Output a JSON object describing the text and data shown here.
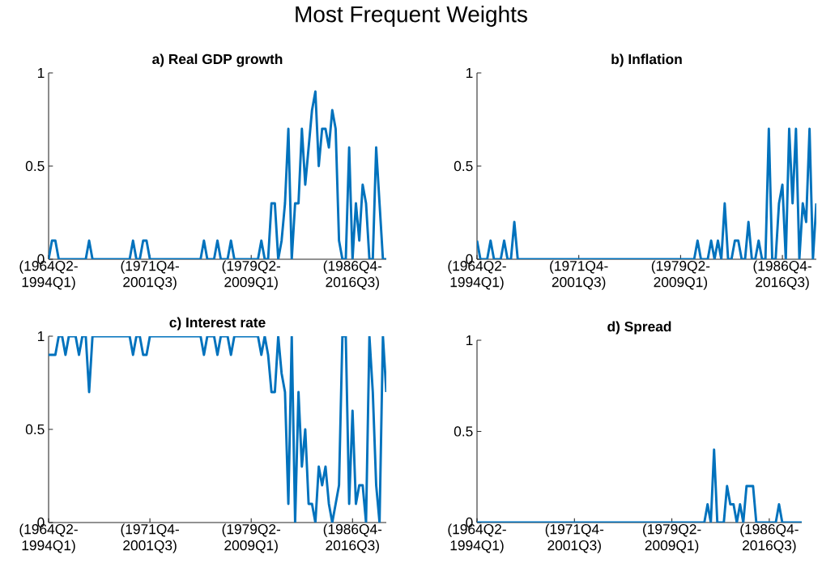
{
  "chart_data": [
    {
      "type": "other",
      "title": "Most Frequent Weights"
    },
    {
      "type": "line",
      "title": "a) Real GDP growth",
      "color": "#0072bd",
      "categories": [
        "(1964Q2- 1994Q1)",
        null,
        null,
        null,
        null,
        null,
        null,
        null,
        null,
        null,
        null,
        null,
        null,
        null,
        null,
        null,
        null,
        null,
        null,
        null,
        null,
        null,
        null,
        null,
        null,
        null,
        null,
        null,
        null,
        null,
        "(1971Q4- 2001Q3)",
        null,
        null,
        null,
        null,
        null,
        null,
        null,
        null,
        null,
        null,
        null,
        null,
        null,
        null,
        null,
        null,
        null,
        null,
        null,
        null,
        null,
        null,
        null,
        null,
        null,
        null,
        null,
        null,
        null,
        "(1979Q2- 2009Q1)",
        null,
        null,
        null,
        null,
        null,
        null,
        null,
        null,
        null,
        null,
        null,
        null,
        null,
        null,
        null,
        null,
        null,
        null,
        null,
        null,
        null,
        null,
        null,
        null,
        null,
        null,
        null,
        null,
        null,
        "(1986Q4- 2016Q3)",
        null,
        null,
        null,
        null,
        null,
        null,
        null,
        null,
        null,
        null
      ],
      "values": [
        0,
        0.1,
        0.1,
        0,
        0,
        0,
        0,
        0,
        0,
        0,
        0,
        0,
        0.1,
        0,
        0,
        0,
        0,
        0,
        0,
        0,
        0,
        0,
        0,
        0,
        0,
        0.1,
        0,
        0,
        0.1,
        0.1,
        0,
        0,
        0,
        0,
        0,
        0,
        0,
        0,
        0,
        0,
        0,
        0,
        0,
        0,
        0,
        0,
        0.1,
        0,
        0,
        0,
        0.1,
        0,
        0,
        0,
        0.1,
        0,
        0,
        0,
        0,
        0,
        0,
        0,
        0,
        0.1,
        0,
        0,
        0.3,
        0.3,
        0,
        0.1,
        0.3,
        0.7,
        0,
        0.3,
        0.3,
        0.7,
        0.4,
        0.6,
        0.8,
        0.9,
        0.5,
        0.7,
        0.7,
        0.6,
        0.8,
        0.7,
        0.1,
        0,
        0,
        0.6,
        0,
        0.3,
        0.1,
        0.4,
        0.3,
        0,
        0,
        0.6,
        0.3,
        0,
        0
      ],
      "ylim": [
        0,
        1
      ],
      "yticks": [
        0,
        0.5,
        1
      ]
    },
    {
      "type": "line",
      "title": "b) Inflation",
      "color": "#0072bd",
      "categories": [
        "(1964Q2- 1994Q1)",
        null,
        null,
        null,
        null,
        null,
        null,
        null,
        null,
        null,
        null,
        null,
        null,
        null,
        null,
        null,
        null,
        null,
        null,
        null,
        null,
        null,
        null,
        null,
        null,
        null,
        null,
        null,
        null,
        null,
        "(1971Q4- 2001Q3)",
        null,
        null,
        null,
        null,
        null,
        null,
        null,
        null,
        null,
        null,
        null,
        null,
        null,
        null,
        null,
        null,
        null,
        null,
        null,
        null,
        null,
        null,
        null,
        null,
        null,
        null,
        null,
        null,
        null,
        "(1979Q2- 2009Q1)",
        null,
        null,
        null,
        null,
        null,
        null,
        null,
        null,
        null,
        null,
        null,
        null,
        null,
        null,
        null,
        null,
        null,
        null,
        null,
        null,
        null,
        null,
        null,
        null,
        null,
        null,
        null,
        null,
        null,
        "(1986Q4- 2016Q3)",
        null,
        null,
        null,
        null,
        null,
        null,
        null,
        null,
        null,
        null
      ],
      "values": [
        0.1,
        0,
        0,
        0,
        0.1,
        0,
        0,
        0,
        0.1,
        0,
        0,
        0.2,
        0,
        0,
        0,
        0,
        0,
        0,
        0,
        0,
        0,
        0,
        0,
        0,
        0,
        0,
        0,
        0,
        0,
        0,
        0,
        0,
        0,
        0,
        0,
        0,
        0,
        0,
        0,
        0,
        0,
        0,
        0,
        0,
        0,
        0,
        0,
        0,
        0,
        0,
        0,
        0,
        0,
        0,
        0,
        0,
        0,
        0,
        0,
        0,
        0,
        0,
        0,
        0,
        0,
        0.1,
        0,
        0,
        0,
        0.1,
        0,
        0.1,
        0,
        0.3,
        0,
        0,
        0.1,
        0.1,
        0,
        0,
        0.2,
        0,
        0,
        0.1,
        0,
        0,
        0.7,
        0,
        0,
        0.3,
        0.4,
        0,
        0.7,
        0.3,
        0.7,
        0,
        0.3,
        0.2,
        0.7,
        0,
        0.3
      ],
      "ylim": [
        0,
        1
      ],
      "yticks": [
        0,
        0.5,
        1
      ]
    },
    {
      "type": "line",
      "title": "c) Interest rate",
      "color": "#0072bd",
      "categories": [
        "(1964Q2- 1994Q1)",
        null,
        null,
        null,
        null,
        null,
        null,
        null,
        null,
        null,
        null,
        null,
        null,
        null,
        null,
        null,
        null,
        null,
        null,
        null,
        null,
        null,
        null,
        null,
        null,
        null,
        null,
        null,
        null,
        null,
        "(1971Q4- 2001Q3)",
        null,
        null,
        null,
        null,
        null,
        null,
        null,
        null,
        null,
        null,
        null,
        null,
        null,
        null,
        null,
        null,
        null,
        null,
        null,
        null,
        null,
        null,
        null,
        null,
        null,
        null,
        null,
        null,
        null,
        "(1979Q2- 2009Q1)",
        null,
        null,
        null,
        null,
        null,
        null,
        null,
        null,
        null,
        null,
        null,
        null,
        null,
        null,
        null,
        null,
        null,
        null,
        null,
        null,
        null,
        null,
        null,
        null,
        null,
        null,
        null,
        null,
        null,
        "(1986Q4- 2016Q3)",
        null,
        null,
        null,
        null,
        null,
        null,
        null,
        null,
        null,
        null
      ],
      "values": [
        0.9,
        0.9,
        0.9,
        1,
        1,
        0.9,
        1,
        1,
        1,
        0.9,
        1,
        1,
        0.7,
        1,
        1,
        1,
        1,
        1,
        1,
        1,
        1,
        1,
        1,
        1,
        1,
        0.9,
        1,
        1,
        0.9,
        0.9,
        1,
        1,
        1,
        1,
        1,
        1,
        1,
        1,
        1,
        1,
        1,
        1,
        1,
        1,
        1,
        1,
        0.9,
        1,
        1,
        1,
        0.9,
        1,
        1,
        1,
        0.9,
        1,
        1,
        1,
        1,
        1,
        1,
        1,
        1,
        0.9,
        1,
        0.9,
        0.7,
        0.7,
        1,
        0.8,
        0.7,
        0.1,
        1,
        0,
        0.7,
        0.3,
        0.5,
        0.1,
        0.1,
        0,
        0.3,
        0.2,
        0.3,
        0.1,
        0,
        0.1,
        0.2,
        1,
        1,
        0.1,
        0.6,
        0.1,
        0.2,
        0.2,
        0,
        1,
        0.7,
        0.2,
        0,
        1,
        0.7
      ],
      "ylim": [
        0,
        1
      ],
      "yticks": [
        0,
        0.5,
        1
      ]
    },
    {
      "type": "line",
      "title": "d) Spread",
      "color": "#0072bd",
      "categories": [
        "(1964Q2- 1994Q1)",
        null,
        null,
        null,
        null,
        null,
        null,
        null,
        null,
        null,
        null,
        null,
        null,
        null,
        null,
        null,
        null,
        null,
        null,
        null,
        null,
        null,
        null,
        null,
        null,
        null,
        null,
        null,
        null,
        null,
        "(1971Q4- 2001Q3)",
        null,
        null,
        null,
        null,
        null,
        null,
        null,
        null,
        null,
        null,
        null,
        null,
        null,
        null,
        null,
        null,
        null,
        null,
        null,
        null,
        null,
        null,
        null,
        null,
        null,
        null,
        null,
        null,
        null,
        "(1979Q2- 2009Q1)",
        null,
        null,
        null,
        null,
        null,
        null,
        null,
        null,
        null,
        null,
        null,
        null,
        null,
        null,
        null,
        null,
        null,
        null,
        null,
        null,
        null,
        null,
        null,
        null,
        null,
        null,
        null,
        null,
        null,
        "(1986Q4- 2016Q3)",
        null,
        null,
        null,
        null,
        null,
        null,
        null,
        null,
        null,
        null
      ],
      "values": [
        0,
        0,
        0,
        0,
        0,
        0,
        0,
        0,
        0,
        0,
        0,
        0,
        0,
        0,
        0,
        0,
        0,
        0,
        0,
        0,
        0,
        0,
        0,
        0,
        0,
        0,
        0,
        0,
        0,
        0,
        0,
        0,
        0,
        0,
        0,
        0,
        0,
        0,
        0,
        0,
        0,
        0,
        0,
        0,
        0,
        0,
        0,
        0,
        0,
        0,
        0,
        0,
        0,
        0,
        0,
        0,
        0,
        0,
        0,
        0,
        0,
        0,
        0,
        0,
        0,
        0,
        0,
        0,
        0,
        0,
        0,
        0.1,
        0,
        0.4,
        0,
        0,
        0,
        0.2,
        0.1,
        0.1,
        0,
        0.1,
        0,
        0.2,
        0.2,
        0.2,
        0,
        0,
        0,
        0,
        0,
        0,
        0,
        0.1,
        0,
        0,
        0,
        0,
        0,
        0,
        0
      ],
      "ylim": [
        0,
        1
      ],
      "yticks": [
        0,
        0.5,
        1
      ]
    }
  ]
}
